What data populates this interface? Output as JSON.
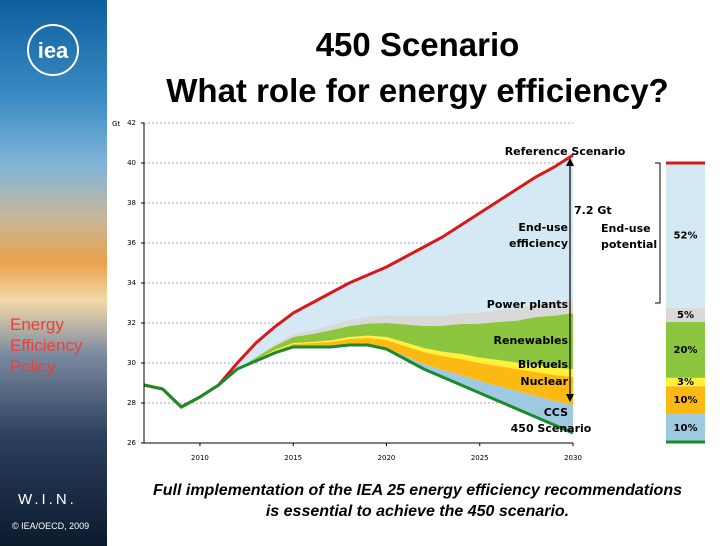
{
  "slide": {
    "logo": "iea",
    "sidebar_title": "Energy Efficiency Policy",
    "sidebar_mark": "W.I.N.",
    "copyright": "© IEA/OECD, 2009",
    "title": [
      "450 Scenario",
      "What role for energy efficiency?"
    ],
    "caption": [
      "Full implementation of the IEA 25 energy efficiency recommendations",
      "is essential to achieve the 450 scenario."
    ]
  },
  "chart_data": {
    "type": "area",
    "y_label": "Gt",
    "x": [
      2007,
      2008,
      2009,
      2010,
      2011,
      2012,
      2013,
      2014,
      2015,
      2016,
      2017,
      2018,
      2019,
      2020,
      2021,
      2022,
      2023,
      2024,
      2025,
      2026,
      2027,
      2028,
      2029,
      2030
    ],
    "xlim": [
      2007,
      2030
    ],
    "xticks": [
      2010,
      2015,
      2020,
      2025,
      2030
    ],
    "ylim": [
      26,
      42
    ],
    "yticks": [
      26,
      28,
      30,
      32,
      34,
      36,
      38,
      40,
      42
    ],
    "grid": true,
    "lines": [
      {
        "name": "Reference Scenario",
        "color": "#d7191c",
        "values": [
          28.9,
          28.7,
          27.8,
          28.3,
          28.9,
          30.0,
          31.0,
          31.8,
          32.5,
          33.0,
          33.5,
          34.0,
          34.4,
          34.8,
          35.3,
          35.8,
          36.3,
          36.9,
          37.5,
          38.1,
          38.7,
          39.3,
          39.8,
          40.4
        ]
      },
      {
        "name": "450 Scenario",
        "color": "#1a8a2a",
        "values": [
          28.9,
          28.7,
          27.8,
          28.3,
          28.9,
          29.7,
          30.1,
          30.5,
          30.8,
          30.8,
          30.8,
          30.9,
          30.9,
          30.7,
          30.2,
          29.7,
          29.3,
          28.9,
          28.5,
          28.1,
          27.7,
          27.3,
          26.9,
          26.5
        ]
      }
    ],
    "series": [
      {
        "name": "CCS",
        "color": "#9ecae1",
        "values": [
          0,
          0,
          0,
          0,
          0,
          0,
          0,
          0,
          0,
          0,
          0,
          0,
          0,
          0.05,
          0.15,
          0.25,
          0.35,
          0.5,
          0.6,
          0.75,
          0.9,
          1.05,
          1.2,
          1.4
        ]
      },
      {
        "name": "Nuclear",
        "color": "#fdb913",
        "values": [
          0,
          0,
          0,
          0,
          0,
          0,
          0.05,
          0.1,
          0.15,
          0.2,
          0.25,
          0.3,
          0.35,
          0.4,
          0.5,
          0.6,
          0.7,
          0.8,
          0.9,
          1.0,
          1.1,
          1.2,
          1.3,
          1.4
        ]
      },
      {
        "name": "Biofuels",
        "color": "#fff13a",
        "values": [
          0,
          0,
          0,
          0,
          0,
          0,
          0.02,
          0.05,
          0.05,
          0.05,
          0.08,
          0.1,
          0.12,
          0.15,
          0.18,
          0.2,
          0.22,
          0.25,
          0.27,
          0.3,
          0.32,
          0.35,
          0.37,
          0.4
        ]
      },
      {
        "name": "Renewables",
        "color": "#8cc63f",
        "values": [
          0,
          0,
          0,
          0,
          0,
          0,
          0.1,
          0.2,
          0.3,
          0.4,
          0.5,
          0.55,
          0.6,
          0.7,
          0.9,
          1.1,
          1.3,
          1.5,
          1.7,
          1.9,
          2.1,
          2.4,
          2.6,
          2.8
        ]
      },
      {
        "name": "Power plants",
        "color": "#d9d9d9",
        "values": [
          0,
          0,
          0,
          0,
          0,
          0,
          0.05,
          0.1,
          0.15,
          0.2,
          0.25,
          0.3,
          0.35,
          0.4,
          0.45,
          0.5,
          0.5,
          0.55,
          0.55,
          0.6,
          0.6,
          0.65,
          0.65,
          0.7
        ]
      },
      {
        "name": "End-use efficiency",
        "color": "#d4e9f3",
        "values": [
          0,
          0,
          0,
          0,
          0,
          0.3,
          0.68,
          0.85,
          1.05,
          1.35,
          1.62,
          1.85,
          2.08,
          2.4,
          2.92,
          3.45,
          3.93,
          4.4,
          4.98,
          5.45,
          5.98,
          6.35,
          6.78,
          7.2
        ]
      }
    ],
    "annotations": [
      "7.2 Gt",
      "End-use potential"
    ],
    "share_bar": {
      "values": [
        10,
        10,
        3,
        20,
        5,
        52
      ],
      "value_labels": [
        "10%",
        "10%",
        "3%",
        "20%",
        "5%",
        "52%"
      ]
    }
  }
}
